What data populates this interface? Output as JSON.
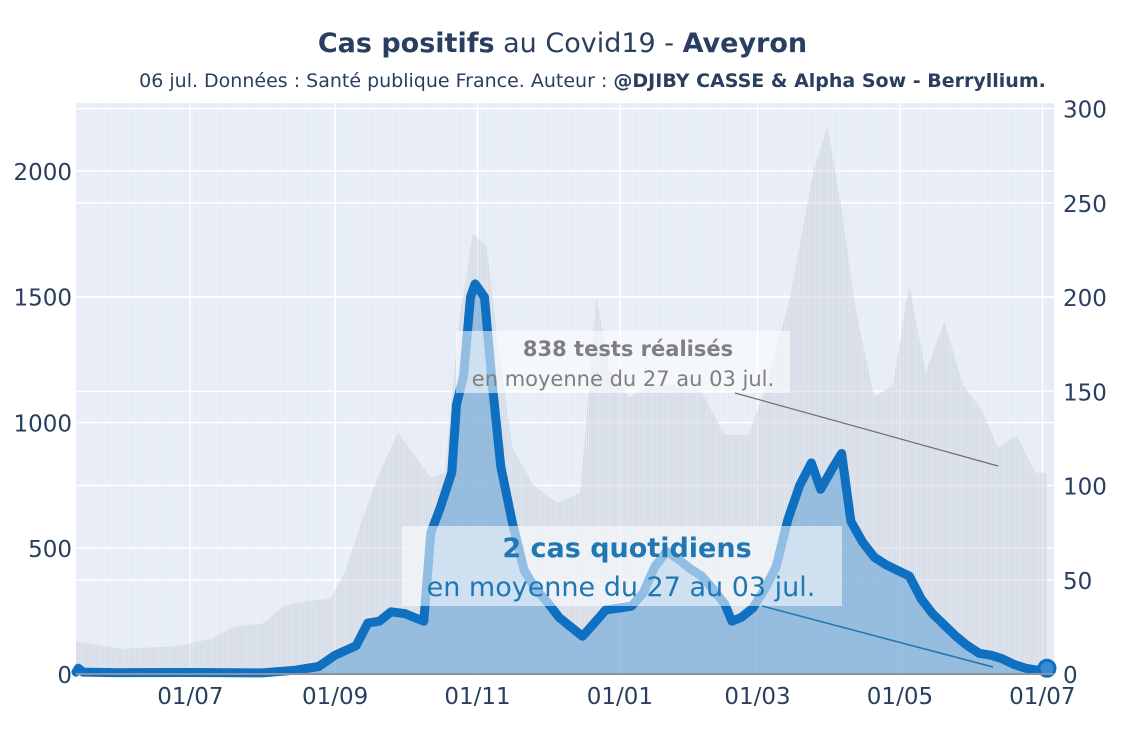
{
  "header": {
    "title_bold1": "Cas positifs",
    "title_mid": " au Covid19 - ",
    "title_bold2": "Aveyron",
    "subtitle_plain": "06 jul. Données : Santé publique France. Auteur : ",
    "subtitle_bold": "@DJIBY CASSE & Alpha Sow - Berryllium."
  },
  "colors": {
    "plot_bg": "#e5ecf6",
    "cases_line": "#0f6fc0",
    "cases_fill": "#5d9ed6",
    "tests_bars": "#c8d0da",
    "annotation_tests": "#7f7f7f",
    "annotation_cases": "#1f77b4"
  },
  "annotations": {
    "tests_title": "838 tests réalisés",
    "tests_sub": "en moyenne du 27 au 03 jul.",
    "cases_title": "2 cas quotidiens",
    "cases_sub": "en moyenne du 27 au 03 jul."
  },
  "chart_data": {
    "type": "line",
    "x_range": [
      "2020-05-13",
      "2021-07-06"
    ],
    "x_ticks": [
      "01/07",
      "01/09",
      "01/11",
      "01/01",
      "01/03",
      "01/05",
      "01/07"
    ],
    "x_tick_dates": [
      "2020-07-01",
      "2020-09-01",
      "2020-11-01",
      "2021-01-01",
      "2021-03-01",
      "2021-05-01",
      "2021-07-01"
    ],
    "y_left": {
      "range": [
        0,
        2270
      ],
      "ticks": [
        0,
        500,
        1000,
        1500,
        2000
      ]
    },
    "y_right": {
      "range": [
        0,
        303
      ],
      "ticks": [
        0,
        50,
        100,
        150,
        200,
        250,
        300
      ]
    },
    "series": [
      {
        "axis": "right",
        "style": "area-line",
        "points": [
          [
            "2020-05-13",
            1
          ],
          [
            "2020-05-14",
            3
          ],
          [
            "2020-05-16",
            1
          ],
          [
            "2020-06-01",
            0.7
          ],
          [
            "2020-07-01",
            0.8
          ],
          [
            "2020-08-01",
            0.6
          ],
          [
            "2020-08-15",
            2
          ],
          [
            "2020-08-25",
            4
          ],
          [
            "2020-09-01",
            10
          ],
          [
            "2020-09-10",
            15
          ],
          [
            "2020-09-15",
            27
          ],
          [
            "2020-09-20",
            28
          ],
          [
            "2020-09-25",
            33
          ],
          [
            "2020-10-01",
            32
          ],
          [
            "2020-10-05",
            30
          ],
          [
            "2020-10-09",
            28
          ],
          [
            "2020-10-12",
            75
          ],
          [
            "2020-10-16",
            88
          ],
          [
            "2020-10-21",
            107
          ],
          [
            "2020-10-23",
            143
          ],
          [
            "2020-10-26",
            158
          ],
          [
            "2020-10-29",
            200
          ],
          [
            "2020-10-31",
            207
          ],
          [
            "2020-11-04",
            200
          ],
          [
            "2020-11-07",
            158
          ],
          [
            "2020-11-11",
            110
          ],
          [
            "2020-11-16",
            80
          ],
          [
            "2020-11-21",
            55
          ],
          [
            "2020-11-26",
            45
          ],
          [
            "2020-12-01",
            38
          ],
          [
            "2020-12-06",
            30
          ],
          [
            "2020-12-11",
            25
          ],
          [
            "2020-12-16",
            20
          ],
          [
            "2020-12-21",
            27
          ],
          [
            "2020-12-26",
            34
          ],
          [
            "2021-01-01",
            35
          ],
          [
            "2021-01-06",
            36
          ],
          [
            "2021-01-11",
            43
          ],
          [
            "2021-01-16",
            57
          ],
          [
            "2021-01-21",
            65
          ],
          [
            "2021-01-26",
            61
          ],
          [
            "2021-01-31",
            56
          ],
          [
            "2021-02-05",
            52
          ],
          [
            "2021-02-10",
            45
          ],
          [
            "2021-02-15",
            37
          ],
          [
            "2021-02-18",
            28
          ],
          [
            "2021-02-22",
            30
          ],
          [
            "2021-02-27",
            35
          ],
          [
            "2021-03-04",
            45
          ],
          [
            "2021-03-09",
            57
          ],
          [
            "2021-03-14",
            82
          ],
          [
            "2021-03-19",
            100
          ],
          [
            "2021-03-24",
            112
          ],
          [
            "2021-03-28",
            98
          ],
          [
            "2021-04-02",
            109
          ],
          [
            "2021-04-06",
            117
          ],
          [
            "2021-04-10",
            81
          ],
          [
            "2021-04-15",
            70
          ],
          [
            "2021-04-20",
            62
          ],
          [
            "2021-04-25",
            58
          ],
          [
            "2021-04-30",
            55
          ],
          [
            "2021-05-05",
            52
          ],
          [
            "2021-05-10",
            40
          ],
          [
            "2021-05-15",
            32
          ],
          [
            "2021-05-20",
            26
          ],
          [
            "2021-05-25",
            20
          ],
          [
            "2021-05-30",
            15
          ],
          [
            "2021-06-04",
            11
          ],
          [
            "2021-06-09",
            10
          ],
          [
            "2021-06-14",
            8
          ],
          [
            "2021-06-19",
            5
          ],
          [
            "2021-06-24",
            3
          ],
          [
            "2021-06-29",
            2
          ],
          [
            "2021-07-03",
            2
          ]
        ]
      },
      {
        "axis": "left",
        "style": "bars",
        "points": [
          [
            "2020-05-13",
            130
          ],
          [
            "2020-06-01",
            100
          ],
          [
            "2020-06-25",
            110
          ],
          [
            "2020-07-10",
            140
          ],
          [
            "2020-07-20",
            190
          ],
          [
            "2020-08-01",
            200
          ],
          [
            "2020-08-10",
            270
          ],
          [
            "2020-08-20",
            290
          ],
          [
            "2020-08-30",
            300
          ],
          [
            "2020-09-05",
            400
          ],
          [
            "2020-09-12",
            600
          ],
          [
            "2020-09-20",
            800
          ],
          [
            "2020-09-28",
            960
          ],
          [
            "2020-10-05",
            870
          ],
          [
            "2020-10-12",
            780
          ],
          [
            "2020-10-18",
            800
          ],
          [
            "2020-10-24",
            1400
          ],
          [
            "2020-10-30",
            1750
          ],
          [
            "2020-11-05",
            1700
          ],
          [
            "2020-11-10",
            1300
          ],
          [
            "2020-11-16",
            900
          ],
          [
            "2020-11-25",
            750
          ],
          [
            "2020-12-05",
            680
          ],
          [
            "2020-12-15",
            720
          ],
          [
            "2020-12-22",
            1500
          ],
          [
            "2020-12-28",
            1200
          ],
          [
            "2021-01-05",
            1100
          ],
          [
            "2021-01-15",
            1150
          ],
          [
            "2021-01-25",
            1150
          ],
          [
            "2021-02-05",
            1120
          ],
          [
            "2021-02-15",
            950
          ],
          [
            "2021-02-25",
            950
          ],
          [
            "2021-03-05",
            1150
          ],
          [
            "2021-03-15",
            1500
          ],
          [
            "2021-03-25",
            2000
          ],
          [
            "2021-03-31",
            2180
          ],
          [
            "2021-04-06",
            1850
          ],
          [
            "2021-04-12",
            1450
          ],
          [
            "2021-04-20",
            1100
          ],
          [
            "2021-04-28",
            1150
          ],
          [
            "2021-05-05",
            1550
          ],
          [
            "2021-05-12",
            1200
          ],
          [
            "2021-05-20",
            1400
          ],
          [
            "2021-05-28",
            1150
          ],
          [
            "2021-06-05",
            1050
          ],
          [
            "2021-06-12",
            900
          ],
          [
            "2021-06-20",
            950
          ],
          [
            "2021-06-28",
            800
          ],
          [
            "2021-07-03",
            800
          ]
        ]
      }
    ]
  }
}
